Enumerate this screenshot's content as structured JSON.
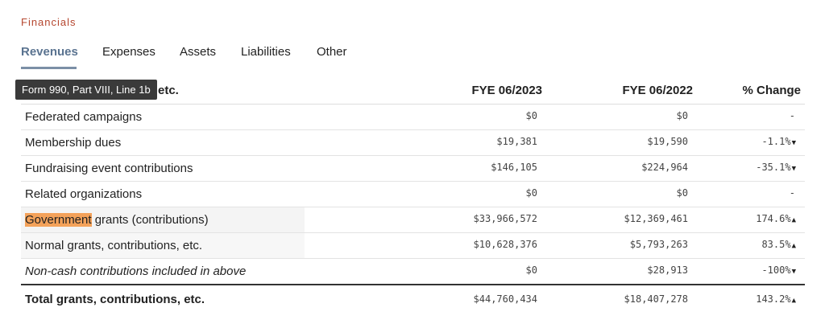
{
  "section_title": "Financials",
  "tabs": [
    {
      "label": "Revenues",
      "active": true
    },
    {
      "label": "Expenses",
      "active": false
    },
    {
      "label": "Assets",
      "active": false
    },
    {
      "label": "Liabilities",
      "active": false
    },
    {
      "label": "Other",
      "active": false
    }
  ],
  "tooltip": "Form 990, Part VIII, Line 1b",
  "table": {
    "header_label_visible": "etc.",
    "columns": [
      "FYE 06/2023",
      "FYE 06/2022",
      "% Change"
    ],
    "rows": [
      {
        "label": "Federated campaigns",
        "fye2023": "$0",
        "fye2022": "$0",
        "change": "-",
        "arrow": ""
      },
      {
        "label": "Membership dues",
        "fye2023": "$19,381",
        "fye2022": "$19,590",
        "change": "-1.1%",
        "arrow": "▼"
      },
      {
        "label": "Fundraising event contributions",
        "fye2023": "$146,105",
        "fye2022": "$224,964",
        "change": "-35.1%",
        "arrow": "▼"
      },
      {
        "label": "Related organizations",
        "fye2023": "$0",
        "fye2022": "$0",
        "change": "-",
        "arrow": ""
      },
      {
        "label_highlight": "Government",
        "label_rest": " grants (contributions)",
        "fye2023": "$33,966,572",
        "fye2022": "$12,369,461",
        "change": "174.6%",
        "arrow": "▲"
      },
      {
        "label": "Normal grants, contributions, etc.",
        "fye2023": "$10,628,376",
        "fye2022": "$5,793,263",
        "change": "83.5%",
        "arrow": "▲"
      },
      {
        "label": "Non-cash contributions included in above",
        "fye2023": "$0",
        "fye2022": "$28,913",
        "change": "-100%",
        "arrow": "▼"
      }
    ],
    "total": {
      "label": "Total grants, contributions, etc.",
      "fye2023": "$44,760,434",
      "fye2022": "$18,407,278",
      "change": "143.2%",
      "arrow": "▲"
    }
  },
  "colors": {
    "section_title": "#b5462e",
    "active_tab": "#5a7390",
    "highlight": "#f4a25a"
  }
}
